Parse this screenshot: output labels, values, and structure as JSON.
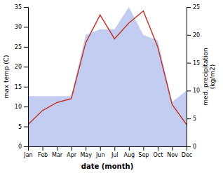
{
  "chart_data": {
    "type": "line",
    "categories": [
      "Jan",
      "Feb",
      "Mar",
      "Apr",
      "May",
      "Jun",
      "Jul",
      "Aug",
      "Sep",
      "Oct",
      "Nov",
      "Dec"
    ],
    "series": [
      {
        "type": "area",
        "axis": "y2",
        "color": "#b8c4f0",
        "values": [
          9.0,
          9.0,
          9.0,
          9.0,
          20.0,
          21.0,
          21.0,
          25.0,
          20.0,
          19.0,
          8.0,
          10.0
        ]
      },
      {
        "type": "line",
        "color": "#c0392b",
        "values": [
          5.5,
          9.0,
          11.0,
          12.0,
          26.0,
          33.0,
          27.0,
          31.0,
          34.0,
          25.0,
          10.5,
          5.5
        ]
      }
    ],
    "xlabel": "date (month)",
    "ylabel": "max temp (C)",
    "y2label": "med. precipitation\n(kg/m2)",
    "ylim": [
      0,
      35
    ],
    "yticks": [
      0,
      5,
      10,
      15,
      20,
      25,
      30,
      35
    ],
    "y2lim": [
      0,
      25
    ],
    "y2ticks": [
      0,
      5,
      10,
      15,
      20,
      25
    ],
    "grid": false
  }
}
